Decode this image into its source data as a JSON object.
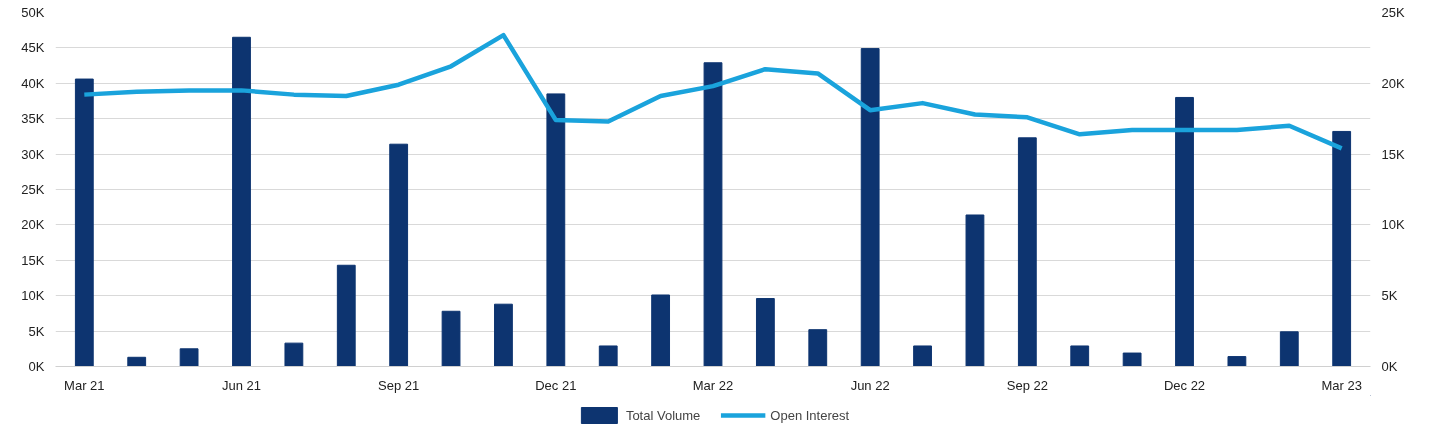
{
  "chart_data": {
    "type": "bar",
    "categories": [
      "Mar 21",
      null,
      null,
      "Jun 21",
      null,
      null,
      "Sep 21",
      null,
      null,
      "Dec 21",
      null,
      null,
      "Mar 22",
      null,
      null,
      "Jun 22",
      null,
      null,
      "Sep 22",
      null,
      null,
      "Dec 22",
      null,
      null,
      "Mar 23"
    ],
    "series": [
      {
        "name": "Total Volume",
        "color": "#0d3470",
        "values": [
          40600,
          1300,
          2500,
          46500,
          3300,
          14300,
          31400,
          7800,
          8800,
          38500,
          2900,
          10100,
          42900,
          9600,
          5200,
          44900,
          2900,
          21400,
          32300,
          2900,
          1900,
          38000,
          1400,
          4900,
          33200
        ]
      },
      {
        "name": "Open Interest",
        "type": "line",
        "axis": "y2",
        "color": "#1aa3dc",
        "values": [
          19200,
          19400,
          19500,
          19500,
          19200,
          19100,
          19900,
          21200,
          23400,
          17400,
          17300,
          19100,
          19800,
          21000,
          20700,
          18100,
          18600,
          17800,
          17600,
          16400,
          16700,
          16700,
          16700,
          17000,
          15400
        ]
      }
    ],
    "ylim": [
      0,
      50000
    ],
    "yticks": [
      {
        "value": 0,
        "label": "0K"
      },
      {
        "value": 5000,
        "label": "5K"
      },
      {
        "value": 10000,
        "label": "10K"
      },
      {
        "value": 15000,
        "label": "15K"
      },
      {
        "value": 20000,
        "label": "20K"
      },
      {
        "value": 25000,
        "label": "25K"
      },
      {
        "value": 30000,
        "label": "30K"
      },
      {
        "value": 35000,
        "label": "35K"
      },
      {
        "value": 40000,
        "label": "40K"
      },
      {
        "value": 45000,
        "label": "45K"
      },
      {
        "value": 50000,
        "label": "50K"
      }
    ],
    "y2lim": [
      0,
      25000
    ],
    "y2ticks": [
      {
        "value": 0,
        "label": "0K"
      },
      {
        "value": 5000,
        "label": "5K"
      },
      {
        "value": 10000,
        "label": "10K"
      },
      {
        "value": 15000,
        "label": "15K"
      },
      {
        "value": 20000,
        "label": "20K"
      },
      {
        "value": 25000,
        "label": "25K"
      }
    ],
    "grid": "y",
    "legend": "bottom",
    "line_style": "solid",
    "marker": "none"
  }
}
